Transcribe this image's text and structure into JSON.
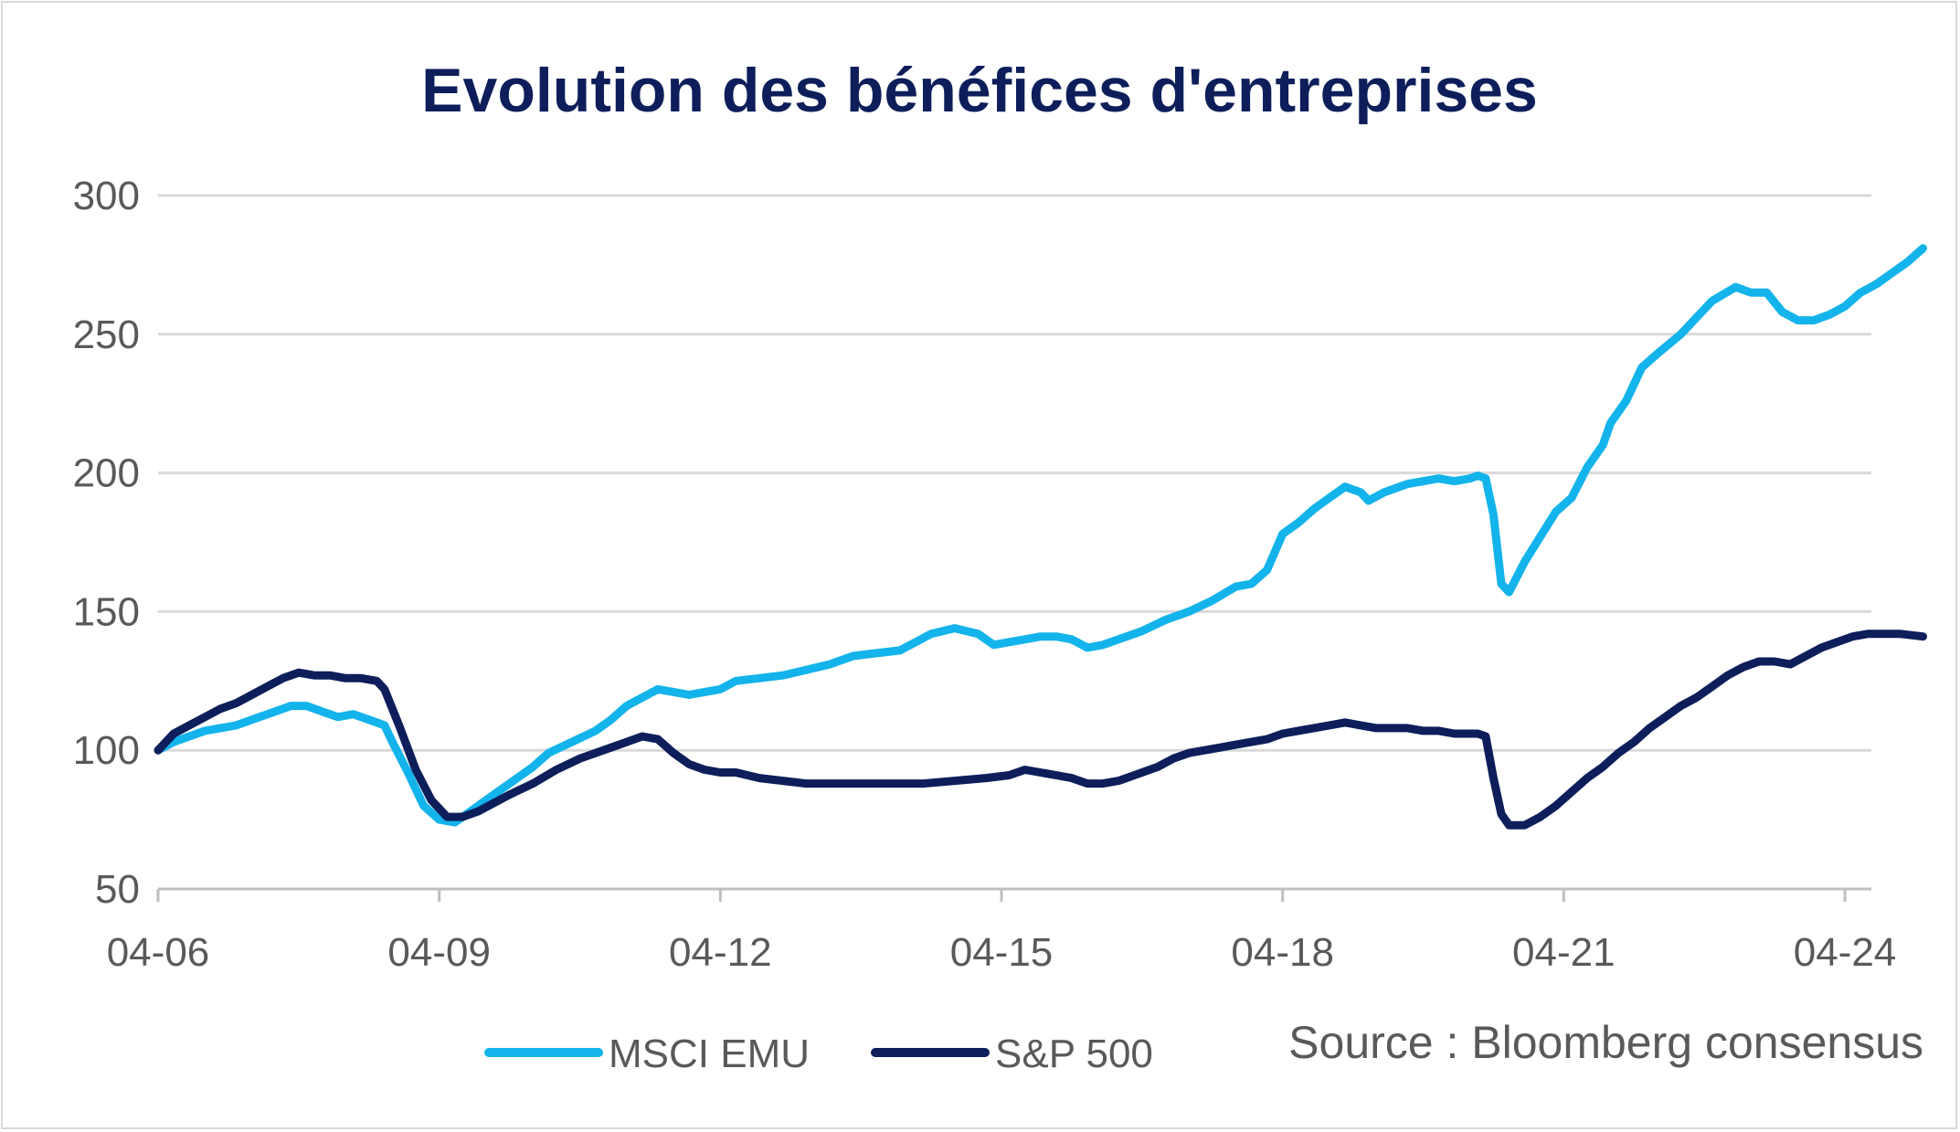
{
  "colors": {
    "title": "#0d1e5a",
    "grid": "#d9d9d9",
    "axis": "#bfbfbf",
    "msci": "#13b3eb",
    "sp": "#0d1e5a"
  },
  "chart_data": {
    "type": "line",
    "title": "Evolution des bénéfices d'entreprises",
    "source": "Source : Bloomberg consensus",
    "ylim": [
      50,
      300
    ],
    "yticks": [
      "300",
      "250",
      "200",
      "150",
      "100",
      "50"
    ],
    "xlim": [
      0,
      216
    ],
    "xticks": [
      {
        "label": "04-06",
        "x": 0
      },
      {
        "label": "04-09",
        "x": 36
      },
      {
        "label": "04-12",
        "x": 72
      },
      {
        "label": "04-15",
        "x": 108
      },
      {
        "label": "04-18",
        "x": 144
      },
      {
        "label": "04-21",
        "x": 180
      },
      {
        "label": "04-24",
        "x": 216
      }
    ],
    "grid": true,
    "legend_position": "bottom",
    "series": [
      {
        "name": "MSCI EMU",
        "points": [
          [
            0,
            100
          ],
          [
            2,
            103
          ],
          [
            4,
            105
          ],
          [
            6,
            107
          ],
          [
            8,
            108
          ],
          [
            10,
            109
          ],
          [
            13,
            112
          ],
          [
            15,
            114
          ],
          [
            17,
            116
          ],
          [
            19,
            116
          ],
          [
            21,
            114
          ],
          [
            23,
            112
          ],
          [
            25,
            113
          ],
          [
            27,
            111
          ],
          [
            29,
            109
          ],
          [
            30,
            103
          ],
          [
            32,
            92
          ],
          [
            34,
            80
          ],
          [
            36,
            75
          ],
          [
            38,
            74
          ],
          [
            40,
            78
          ],
          [
            42,
            82
          ],
          [
            44,
            86
          ],
          [
            46,
            90
          ],
          [
            48,
            94
          ],
          [
            50,
            99
          ],
          [
            53,
            103
          ],
          [
            56,
            107
          ],
          [
            58,
            111
          ],
          [
            60,
            116
          ],
          [
            62,
            119
          ],
          [
            64,
            122
          ],
          [
            66,
            121
          ],
          [
            68,
            120
          ],
          [
            70,
            121
          ],
          [
            72,
            122
          ],
          [
            74,
            125
          ],
          [
            77,
            126
          ],
          [
            80,
            127
          ],
          [
            83,
            129
          ],
          [
            86,
            131
          ],
          [
            89,
            134
          ],
          [
            92,
            135
          ],
          [
            95,
            136
          ],
          [
            97,
            139
          ],
          [
            99,
            142
          ],
          [
            102,
            144
          ],
          [
            105,
            142
          ],
          [
            107,
            138
          ],
          [
            109,
            139
          ],
          [
            111,
            140
          ],
          [
            113,
            141
          ],
          [
            115,
            141
          ],
          [
            117,
            140
          ],
          [
            119,
            137
          ],
          [
            121,
            138
          ],
          [
            123,
            140
          ],
          [
            126,
            143
          ],
          [
            129,
            147
          ],
          [
            132,
            150
          ],
          [
            135,
            154
          ],
          [
            138,
            159
          ],
          [
            140,
            160
          ],
          [
            142,
            165
          ],
          [
            144,
            178
          ],
          [
            146,
            182
          ],
          [
            148,
            187
          ],
          [
            150,
            191
          ],
          [
            152,
            195
          ],
          [
            154,
            193
          ],
          [
            155,
            190
          ],
          [
            157,
            193
          ],
          [
            160,
            196
          ],
          [
            162,
            197
          ],
          [
            164,
            198
          ],
          [
            166,
            197
          ],
          [
            168,
            198
          ],
          [
            169,
            199
          ],
          [
            170,
            198
          ],
          [
            171,
            185
          ],
          [
            172,
            160
          ],
          [
            173,
            157
          ],
          [
            175,
            168
          ],
          [
            177,
            177
          ],
          [
            179,
            186
          ],
          [
            181,
            191
          ],
          [
            183,
            202
          ],
          [
            185,
            210
          ],
          [
            186,
            218
          ],
          [
            188,
            226
          ],
          [
            190,
            238
          ],
          [
            192,
            243
          ],
          [
            195,
            250
          ],
          [
            197,
            256
          ],
          [
            199,
            262
          ],
          [
            202,
            267
          ],
          [
            204,
            265
          ],
          [
            206,
            265
          ],
          [
            208,
            258
          ],
          [
            210,
            255
          ],
          [
            212,
            255
          ],
          [
            214,
            257
          ],
          [
            216,
            260
          ],
          [
            218,
            265
          ],
          [
            220,
            268
          ],
          [
            222,
            272
          ],
          [
            224,
            276
          ],
          [
            226,
            281
          ]
        ]
      },
      {
        "name": "S&P 500",
        "points": [
          [
            0,
            100
          ],
          [
            2,
            106
          ],
          [
            4,
            109
          ],
          [
            6,
            112
          ],
          [
            8,
            115
          ],
          [
            10,
            117
          ],
          [
            12,
            120
          ],
          [
            14,
            123
          ],
          [
            16,
            126
          ],
          [
            18,
            128
          ],
          [
            20,
            127
          ],
          [
            22,
            127
          ],
          [
            24,
            126
          ],
          [
            26,
            126
          ],
          [
            28,
            125
          ],
          [
            29,
            122
          ],
          [
            31,
            108
          ],
          [
            33,
            93
          ],
          [
            35,
            82
          ],
          [
            37,
            76
          ],
          [
            39,
            76
          ],
          [
            41,
            78
          ],
          [
            43,
            81
          ],
          [
            45,
            84
          ],
          [
            48,
            88
          ],
          [
            51,
            93
          ],
          [
            54,
            97
          ],
          [
            57,
            100
          ],
          [
            60,
            103
          ],
          [
            62,
            105
          ],
          [
            64,
            104
          ],
          [
            66,
            99
          ],
          [
            68,
            95
          ],
          [
            70,
            93
          ],
          [
            72,
            92
          ],
          [
            74,
            92
          ],
          [
            77,
            90
          ],
          [
            80,
            89
          ],
          [
            83,
            88
          ],
          [
            86,
            88
          ],
          [
            90,
            88
          ],
          [
            94,
            88
          ],
          [
            98,
            88
          ],
          [
            102,
            89
          ],
          [
            106,
            90
          ],
          [
            109,
            91
          ],
          [
            111,
            93
          ],
          [
            113,
            92
          ],
          [
            115,
            91
          ],
          [
            117,
            90
          ],
          [
            119,
            88
          ],
          [
            121,
            88
          ],
          [
            123,
            89
          ],
          [
            126,
            92
          ],
          [
            128,
            94
          ],
          [
            130,
            97
          ],
          [
            132,
            99
          ],
          [
            134,
            100
          ],
          [
            136,
            101
          ],
          [
            138,
            102
          ],
          [
            140,
            103
          ],
          [
            142,
            104
          ],
          [
            144,
            106
          ],
          [
            146,
            107
          ],
          [
            148,
            108
          ],
          [
            150,
            109
          ],
          [
            152,
            110
          ],
          [
            154,
            109
          ],
          [
            156,
            108
          ],
          [
            158,
            108
          ],
          [
            160,
            108
          ],
          [
            162,
            107
          ],
          [
            164,
            107
          ],
          [
            166,
            106
          ],
          [
            168,
            106
          ],
          [
            169,
            106
          ],
          [
            170,
            105
          ],
          [
            171,
            90
          ],
          [
            172,
            77
          ],
          [
            173,
            73
          ],
          [
            175,
            73
          ],
          [
            177,
            76
          ],
          [
            179,
            80
          ],
          [
            181,
            85
          ],
          [
            183,
            90
          ],
          [
            185,
            94
          ],
          [
            187,
            99
          ],
          [
            189,
            103
          ],
          [
            191,
            108
          ],
          [
            193,
            112
          ],
          [
            195,
            116
          ],
          [
            197,
            119
          ],
          [
            199,
            123
          ],
          [
            201,
            127
          ],
          [
            203,
            130
          ],
          [
            205,
            132
          ],
          [
            207,
            132
          ],
          [
            209,
            131
          ],
          [
            211,
            134
          ],
          [
            213,
            137
          ],
          [
            215,
            139
          ],
          [
            217,
            141
          ],
          [
            219,
            142
          ],
          [
            221,
            142
          ],
          [
            223,
            142
          ],
          [
            226,
            141
          ]
        ]
      }
    ]
  }
}
